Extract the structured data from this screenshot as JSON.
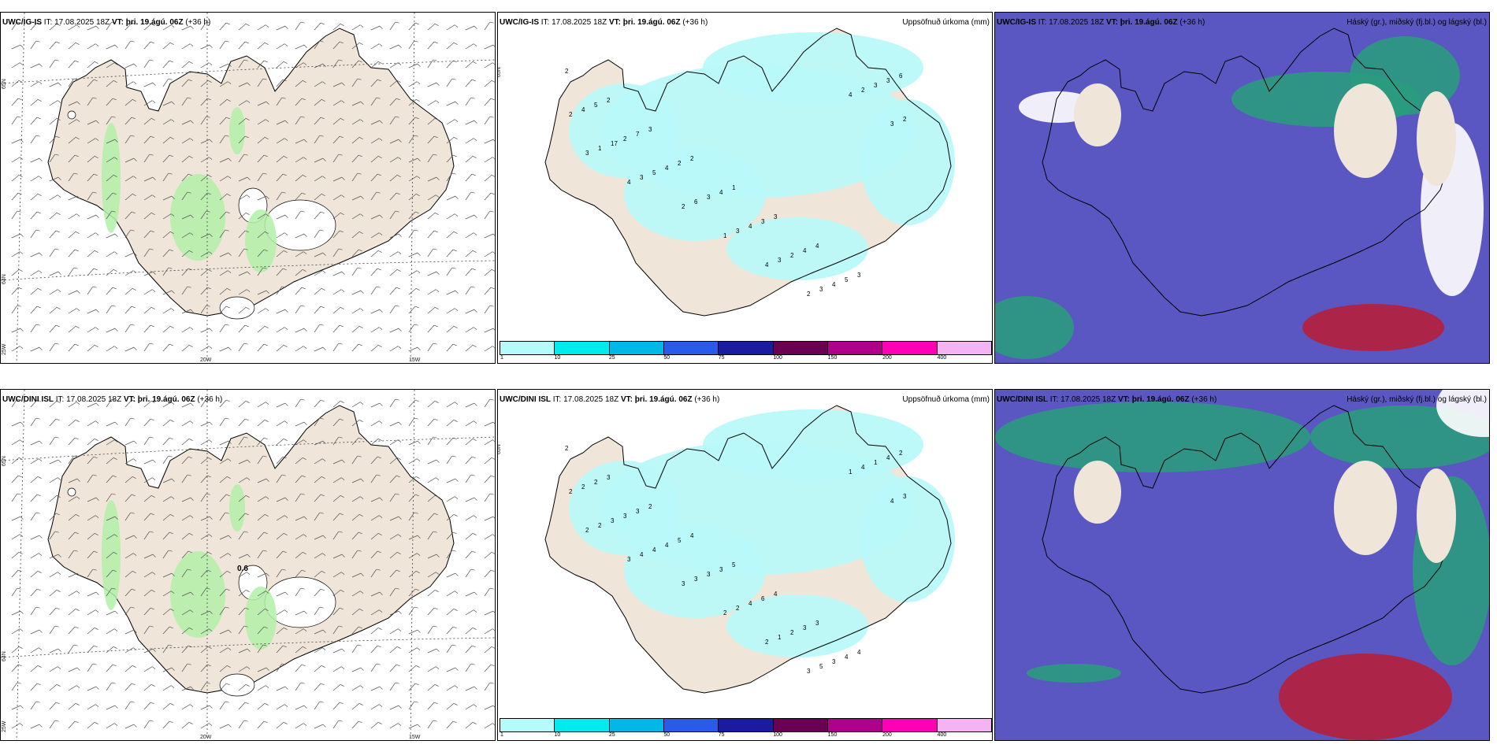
{
  "panels": [
    {
      "model": "UWC/IG-IS",
      "it_prefix": "IT:",
      "it": "17.08.2025 18Z",
      "vt_prefix": "VT:",
      "vt": "þri. 19.ágú. 06Z",
      "lead": "(+36 h)",
      "title_right": ""
    },
    {
      "model": "UWC/IG-IS",
      "it_prefix": "IT:",
      "it": "17.08.2025 18Z",
      "vt_prefix": "VT:",
      "vt": "þri. 19.ágú. 06Z",
      "lead": "(+36 h)",
      "title_right": "Uppsöfnuð úrkoma (mm)"
    },
    {
      "model": "UWC/IG-IS",
      "it_prefix": "IT:",
      "it": "17.08.2025 18Z",
      "vt_prefix": "VT:",
      "vt": "þri. 19.ágú. 06Z",
      "lead": "(+36 h)",
      "title_right": "Háský (gr.), miðský (fj.bl.) og lágský (bl.)"
    },
    {
      "model": "UWC/DINI ISL",
      "it_prefix": "IT:",
      "it": "17.08.2025 18Z",
      "vt_prefix": "VT:",
      "vt": "þri. 19.ágú. 06Z",
      "lead": "(+36 h)",
      "title_right": ""
    },
    {
      "model": "UWC/DINI ISL",
      "it_prefix": "IT:",
      "it": "17.08.2025 18Z",
      "vt_prefix": "VT:",
      "vt": "þri. 19.ágú. 06Z",
      "lead": "(+36 h)",
      "title_right": "Uppsöfnuð úrkoma (mm)"
    },
    {
      "model": "UWC/DINI ISL",
      "it_prefix": "IT:",
      "it": "17.08.2025 18Z",
      "vt_prefix": "VT:",
      "vt": "þri. 19.ágú. 06Z",
      "lead": "(+36 h)",
      "title_right": "Háský (gr.), miðský (fj.bl.) og lágský (bl.)"
    }
  ],
  "gridlabels": {
    "lat65": "65N",
    "lat64": "64N",
    "lon25": "25W",
    "lon20": "20W",
    "lon15": "15W"
  },
  "colorbar": {
    "labels": [
      "1",
      "10",
      "25",
      "50",
      "75",
      "100",
      "150",
      "200",
      "400"
    ],
    "colors": [
      "#b5fbfb",
      "#00ecec",
      "#00b8e6",
      "#2a5ae8",
      "#1b1ba0",
      "#6a0052",
      "#ae0088",
      "#ff00b4",
      "#f4b4f4"
    ]
  },
  "annotations": {
    "wind_value": "0.6"
  },
  "precip_numbers_top": [
    "2",
    "2",
    "3",
    "2",
    "1",
    "3",
    "4",
    "3",
    "6",
    "5",
    "7",
    "2",
    "4",
    "3",
    "4",
    "5",
    "3",
    "4",
    "2",
    "4",
    "3",
    "4",
    "2",
    "4",
    "3",
    "2",
    "17",
    "5",
    "6",
    "3",
    "3",
    "3",
    "2",
    "2",
    "1",
    "3",
    "2",
    "1",
    "4",
    "2",
    "4",
    "3",
    "3",
    "4"
  ],
  "precip_numbers_bottom": [
    "2",
    "3",
    "2",
    "4",
    "5",
    "4",
    "3",
    "4",
    "2",
    "2",
    "3",
    "5",
    "3",
    "6",
    "3",
    "4",
    "4",
    "2",
    "3",
    "4",
    "3",
    "4",
    "2",
    "3",
    "1",
    "2",
    "3",
    "4",
    "3",
    "2",
    "1",
    "5",
    "4",
    "3",
    "2",
    "4",
    "3",
    "2",
    "2",
    "3",
    "1",
    "4",
    "2",
    "3"
  ],
  "colors": {
    "land": "#efe5d8",
    "precip_light": "#b9f9f9",
    "cloud_high": "#5b57c2",
    "cloud_mid": "#2a9b7e",
    "cloud_low": "#3aa3ff",
    "red": "#b5203c",
    "wind_green": "#b2f0a8",
    "sea": "#ffffff"
  }
}
